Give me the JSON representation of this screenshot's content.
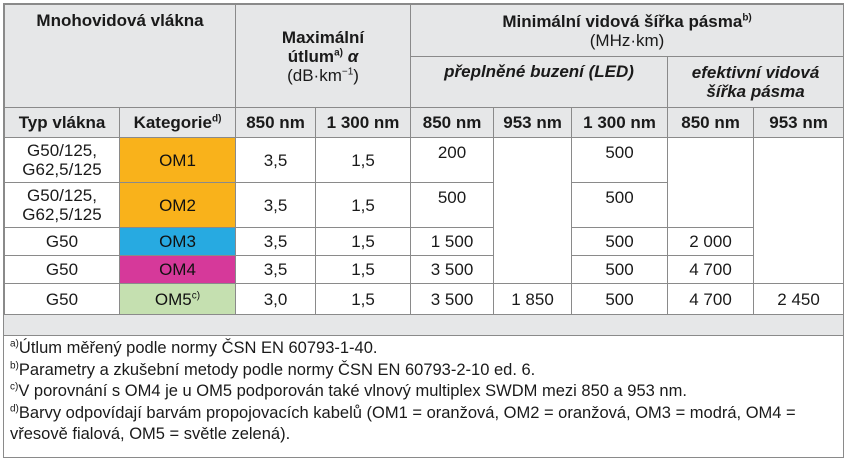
{
  "headers": {
    "fiber_group": "Mnohovidová vlákna",
    "attenuation_title_1": "Maximální",
    "attenuation_title_2": "útlum",
    "attenuation_sup": "a)",
    "attenuation_alpha": "α",
    "attenuation_unit": "(dB·km",
    "attenuation_unit_exp": "−1",
    "attenuation_unit_end": ")",
    "bandwidth_title": "Minimální vidová šířka pásma",
    "bandwidth_sup": "b)",
    "bandwidth_unit": "(MHz·km)",
    "overfilled": "přeplněné buzení (LED)",
    "effective_1": "efektivní vidová",
    "effective_2": "šířka pásma",
    "fiber_type": "Typ vlákna",
    "category": "Kategorie",
    "category_sup": "d)",
    "att_850": "850 nm",
    "att_1300": "1 300 nm",
    "ofl_850": "850 nm",
    "ofl_953": "953 nm",
    "ofl_1300": "1 300 nm",
    "eff_850": "850 nm",
    "eff_953": "953 nm"
  },
  "rows": [
    {
      "type_1": "G50/125,",
      "type_2": "G62,5/125",
      "category": "OM1",
      "category_sup": "",
      "color": "#f9b21b",
      "att_850": "3,5",
      "att_1300": "1,5",
      "ofl_850": "200",
      "ofl_953": "",
      "ofl_1300": "500",
      "eff_850": "",
      "eff_953": ""
    },
    {
      "type_1": "G50/125,",
      "type_2": "G62,5/125",
      "category": "OM2",
      "category_sup": "",
      "color": "#f9b21b",
      "att_850": "3,5",
      "att_1300": "1,5",
      "ofl_850": "500",
      "ofl_953": "",
      "ofl_1300": "500",
      "eff_850": "",
      "eff_953": ""
    },
    {
      "type_1": "G50",
      "type_2": "",
      "category": "OM3",
      "category_sup": "",
      "color": "#27aae1",
      "att_850": "3,5",
      "att_1300": "1,5",
      "ofl_850": "1 500",
      "ofl_953": "",
      "ofl_1300": "500",
      "eff_850": "2 000",
      "eff_953": ""
    },
    {
      "type_1": "G50",
      "type_2": "",
      "category": "OM4",
      "category_sup": "",
      "color": "#d6399a",
      "att_850": "3,5",
      "att_1300": "1,5",
      "ofl_850": "3 500",
      "ofl_953": "",
      "ofl_1300": "500",
      "eff_850": "4 700",
      "eff_953": ""
    },
    {
      "type_1": "G50",
      "type_2": "",
      "category": "OM5",
      "category_sup": "c)",
      "color": "#c5e0b0",
      "att_850": "3,0",
      "att_1300": "1,5",
      "ofl_850": "3 500",
      "ofl_953": "1 850",
      "ofl_1300": "500",
      "eff_850": "4 700",
      "eff_953": "2 450"
    }
  ],
  "notes": [
    {
      "sup": "a)",
      "text": "Útlum měřený podle normy ČSN EN 60793-1-40."
    },
    {
      "sup": "b)",
      "text": "Parametry a zkušební metody podle normy ČSN EN 60793-2-10 ed. 6."
    },
    {
      "sup": "c)",
      "text": "V porovnání s OM4 je u OM5 podporován také vlnový multiplex SWDM mezi 850 a 953 nm."
    },
    {
      "sup": "d)",
      "text": "Barvy odpovídají barvám propojovacích kabelů (OM1 = oranžová, OM2 = oranžová, OM3 = modrá, OM4 = vřesově fialová, OM5 = světle zelená)."
    }
  ]
}
